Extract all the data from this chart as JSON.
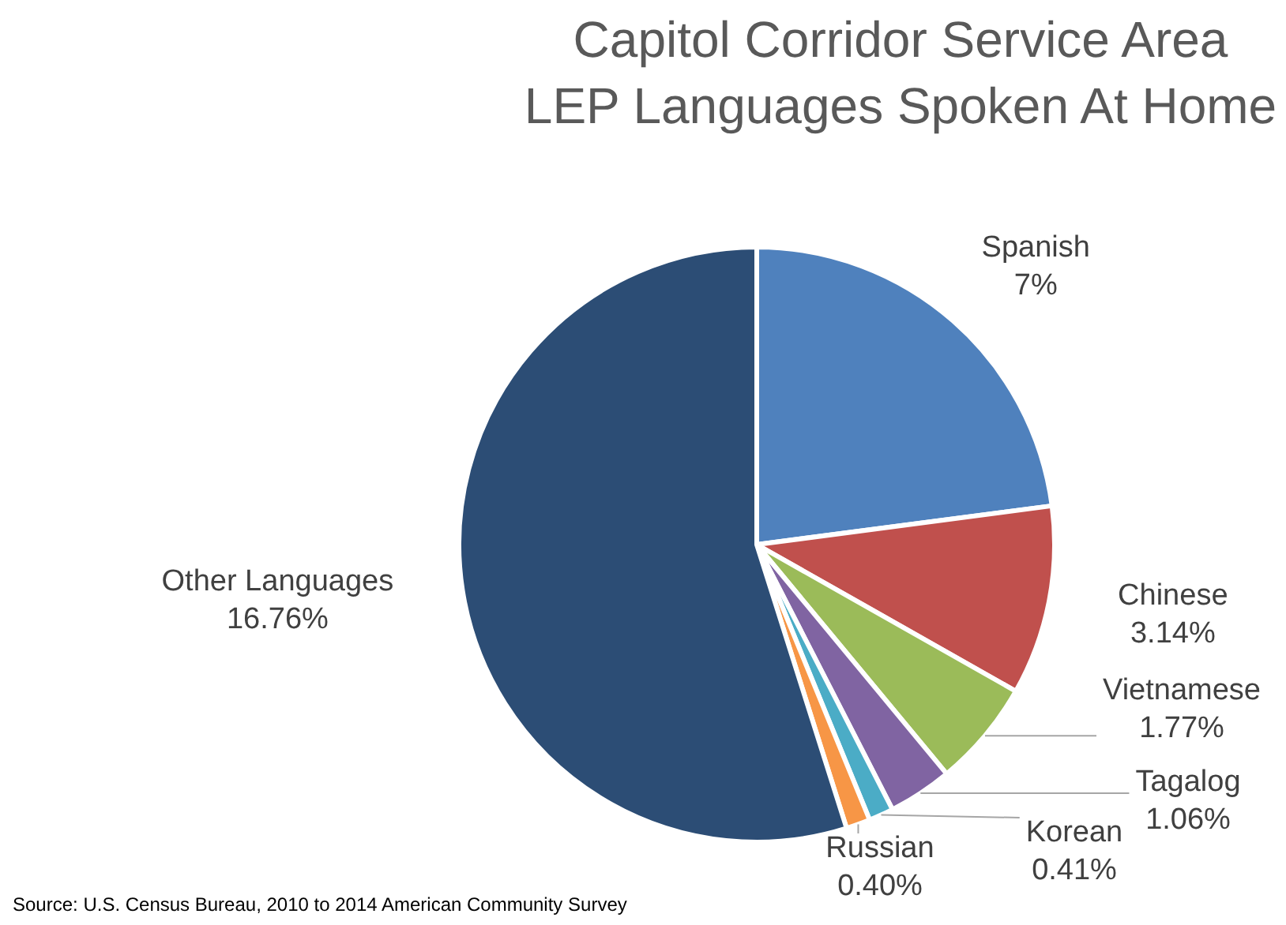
{
  "chart_data": {
    "type": "pie",
    "title": "Capitol Corridor Service Area LEP Languages Spoken At Home",
    "categories": [
      "Spanish",
      "Chinese",
      "Vietnamese",
      "Tagalog",
      "Korean",
      "Russian",
      "Other Languages"
    ],
    "values": [
      7,
      3.14,
      1.77,
      1.06,
      0.41,
      0.4,
      16.76
    ],
    "value_labels": [
      "7%",
      "3.14%",
      "1.77%",
      "1.06%",
      "0.41%",
      "0.40%",
      "16.76%"
    ],
    "colors": [
      "#4f81bd",
      "#c0504d",
      "#9bbb59",
      "#8064a2",
      "#4bacc6",
      "#f79646",
      "#2c4d75"
    ],
    "legend": false,
    "annotations": [
      "Source: U.S. Census Bureau, 2010 to 2014 American Community Survey"
    ]
  }
}
